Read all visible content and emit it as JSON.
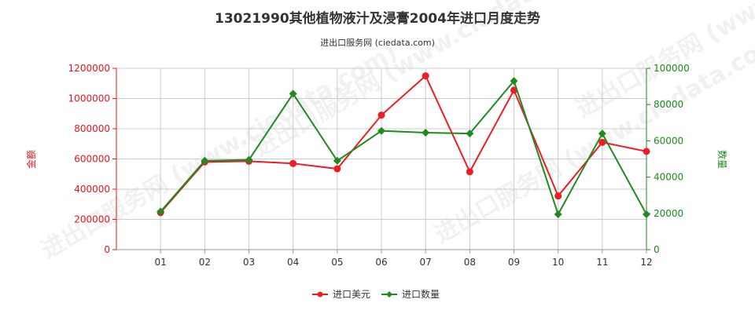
{
  "title": "13021990其他植物液汁及浸膏2004年进口月度走势",
  "subtitle": "进出口服务网 (ciedata.com)",
  "watermark": "进出口服务网 (www.ciedata.com)",
  "colors": {
    "left_axis": "#e8141a",
    "right_axis": "#1d8a1d",
    "series_usd": "#ee1c25",
    "series_qty": "#1e8b1e",
    "grid": "#cccccc"
  },
  "left_axis": {
    "label": "金额",
    "ticks": [
      "0",
      "200000",
      "400000",
      "600000",
      "800000",
      "1000000",
      "1200000"
    ]
  },
  "right_axis": {
    "label": "数量",
    "ticks": [
      "0",
      "20000",
      "40000",
      "60000",
      "80000",
      "100000"
    ]
  },
  "legend": {
    "usd": "进口美元",
    "qty": "进口数量"
  },
  "chart_data": {
    "type": "line",
    "categories": [
      "01",
      "02",
      "03",
      "04",
      "05",
      "06",
      "07",
      "08",
      "09",
      "10",
      "11",
      "12"
    ],
    "y_left_lim": [
      0,
      1200000
    ],
    "y_right_lim": [
      0,
      100000
    ],
    "grid": true,
    "legend_position": "bottom",
    "series": [
      {
        "name": "进口美元",
        "axis": "left",
        "marker": "circle",
        "values": [
          245000,
          580000,
          585000,
          570000,
          535000,
          890000,
          1150000,
          515000,
          1055000,
          355000,
          710000,
          650000
        ]
      },
      {
        "name": "进口数量",
        "axis": "right",
        "marker": "diamond",
        "values": [
          21000,
          49000,
          49500,
          86000,
          49000,
          65500,
          64500,
          64000,
          93000,
          19500,
          64000,
          19500
        ]
      }
    ]
  }
}
